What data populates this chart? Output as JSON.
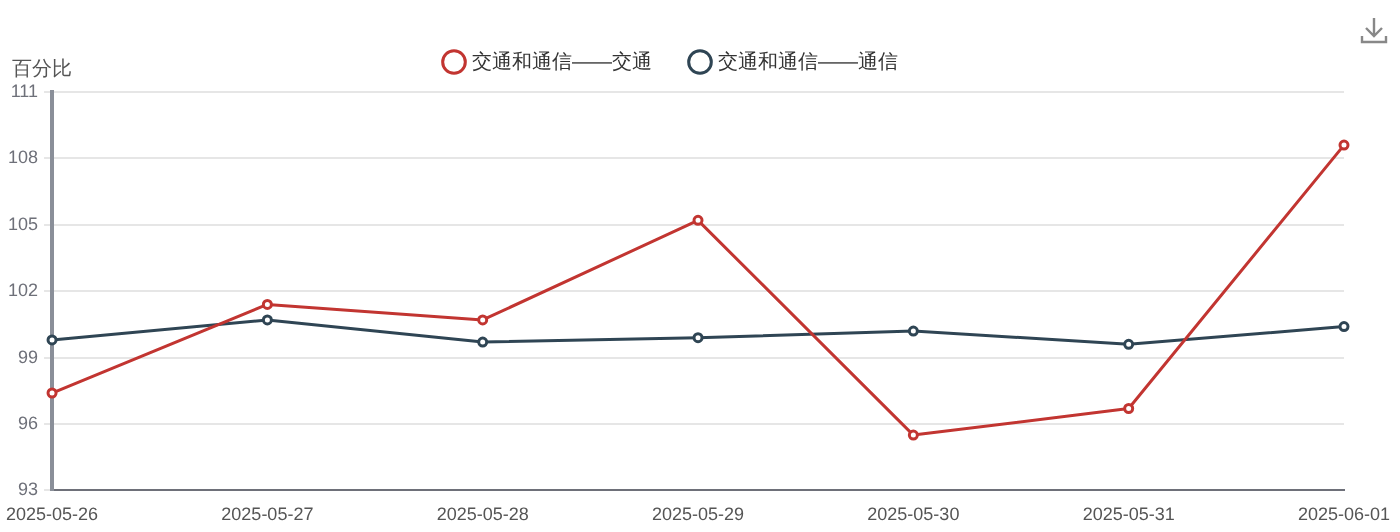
{
  "chart_data": {
    "type": "line",
    "ylabel": "百分比",
    "categories": [
      "2025-05-26",
      "2025-05-27",
      "2025-05-28",
      "2025-05-29",
      "2025-05-30",
      "2025-05-31",
      "2025-06-01"
    ],
    "series": [
      {
        "name": "交通和通信——交通",
        "color": "#c23531",
        "values": [
          97.4,
          101.4,
          100.7,
          105.2,
          95.5,
          96.7,
          108.6
        ]
      },
      {
        "name": "交通和通信——通信",
        "color": "#2f4554",
        "values": [
          99.8,
          100.7,
          99.7,
          99.9,
          100.2,
          99.6,
          100.4
        ]
      }
    ],
    "ylim": [
      93,
      111
    ],
    "yticks": [
      93,
      96,
      99,
      102,
      105,
      108,
      111
    ],
    "grid": "y",
    "legend": "top",
    "marker": "circle",
    "line_style": "solid"
  }
}
